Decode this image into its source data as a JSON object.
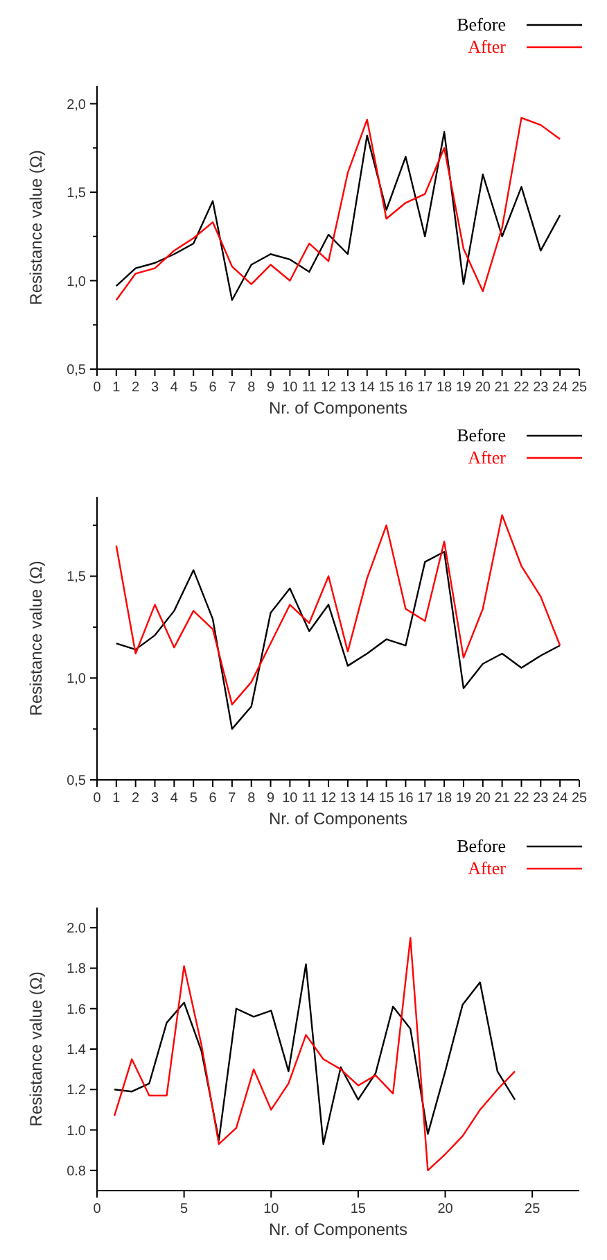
{
  "chart_data": [
    {
      "type": "line",
      "xlabel": "Nr. of Components",
      "ylabel": "Resistance value (Ω)",
      "legend": "top right",
      "x": [
        1,
        2,
        3,
        4,
        5,
        6,
        7,
        8,
        9,
        10,
        11,
        12,
        13,
        14,
        15,
        16,
        17,
        18,
        19,
        20,
        21,
        22,
        23,
        24
      ],
      "xlim": [
        0,
        25
      ],
      "xticks": [
        0,
        1,
        2,
        3,
        4,
        5,
        6,
        7,
        8,
        9,
        10,
        11,
        12,
        13,
        14,
        15,
        16,
        17,
        18,
        19,
        20,
        21,
        22,
        23,
        24,
        25
      ],
      "ylim": [
        0.5,
        2.1
      ],
      "yticks": [
        {
          "value": 0.5,
          "label": "0,5"
        },
        {
          "value": 0.75,
          "label": null
        },
        {
          "value": 1,
          "label": "1,0"
        },
        {
          "value": 1.25,
          "label": null
        },
        {
          "value": 1.5,
          "label": "1,5"
        },
        {
          "value": 1.75,
          "label": null
        },
        {
          "value": 2,
          "label": "2,0"
        }
      ],
      "series": [
        {
          "name": "Before",
          "color": "#000000",
          "values": [
            0.97,
            1.07,
            1.1,
            1.15,
            1.21,
            1.45,
            0.89,
            1.09,
            1.15,
            1.12,
            1.05,
            1.26,
            1.15,
            1.82,
            1.4,
            1.7,
            1.25,
            1.84,
            0.98,
            1.6,
            1.25,
            1.53,
            1.17,
            1.37
          ]
        },
        {
          "name": "After",
          "color": "#ff0000",
          "values": [
            0.89,
            1.04,
            1.07,
            1.17,
            1.24,
            1.33,
            1.08,
            0.98,
            1.09,
            1.0,
            1.21,
            1.11,
            1.61,
            1.91,
            1.35,
            1.44,
            1.49,
            1.75,
            1.18,
            0.94,
            1.3,
            1.92,
            1.88,
            1.8
          ]
        }
      ]
    },
    {
      "type": "line",
      "xlabel": "Nr. of Components",
      "ylabel": "Resistance value (Ω)",
      "legend": "top right",
      "x": [
        1,
        2,
        3,
        4,
        5,
        6,
        7,
        8,
        9,
        10,
        11,
        12,
        13,
        14,
        15,
        16,
        17,
        18,
        19,
        20,
        21,
        22,
        23,
        24
      ],
      "xlim": [
        0,
        25
      ],
      "xticks": [
        0,
        1,
        2,
        3,
        4,
        5,
        6,
        7,
        8,
        9,
        10,
        11,
        12,
        13,
        14,
        15,
        16,
        17,
        18,
        19,
        20,
        21,
        22,
        23,
        24,
        25
      ],
      "ylim": [
        0.5,
        1.89
      ],
      "yticks": [
        {
          "value": 0.5,
          "label": "0,5"
        },
        {
          "value": 0.75,
          "label": null
        },
        {
          "value": 1,
          "label": "1,0"
        },
        {
          "value": 1.25,
          "label": null
        },
        {
          "value": 1.5,
          "label": "1,5"
        },
        {
          "value": 1.75,
          "label": null
        }
      ],
      "series": [
        {
          "name": "Before",
          "color": "#000000",
          "values": [
            1.17,
            1.14,
            1.21,
            1.33,
            1.53,
            1.29,
            0.75,
            0.86,
            1.32,
            1.44,
            1.23,
            1.36,
            1.06,
            1.12,
            1.19,
            1.16,
            1.57,
            1.62,
            0.95,
            1.07,
            1.12,
            1.05,
            1.11,
            1.16
          ]
        },
        {
          "name": "After",
          "color": "#ff0000",
          "values": [
            1.65,
            1.12,
            1.36,
            1.15,
            1.33,
            1.24,
            0.87,
            0.98,
            1.17,
            1.36,
            1.27,
            1.5,
            1.13,
            1.49,
            1.75,
            1.34,
            1.28,
            1.67,
            1.1,
            1.34,
            1.8,
            1.55,
            1.4,
            1.16
          ]
        }
      ]
    },
    {
      "type": "line",
      "xlabel": "Nr. of Components",
      "ylabel": "Resistance value (Ω)",
      "legend": "top right",
      "x": [
        1,
        2,
        3,
        4,
        5,
        6,
        7,
        8,
        9,
        10,
        11,
        12,
        13,
        14,
        15,
        16,
        17,
        18,
        19,
        20,
        21,
        22,
        23,
        24
      ],
      "xlim": [
        0,
        27.7
      ],
      "xticks": [
        0,
        5,
        10,
        15,
        20,
        25
      ],
      "ylim": [
        0.7,
        2.1
      ],
      "yticks": [
        {
          "value": 0.8,
          "label": "0.8"
        },
        {
          "value": 1,
          "label": "1.0"
        },
        {
          "value": 1.2,
          "label": "1.2"
        },
        {
          "value": 1.4,
          "label": "1.4"
        },
        {
          "value": 1.6,
          "label": "1.6"
        },
        {
          "value": 1.8,
          "label": "1.8"
        },
        {
          "value": 2,
          "label": "2.0"
        }
      ],
      "series": [
        {
          "name": "Before",
          "color": "#000000",
          "values": [
            1.2,
            1.19,
            1.23,
            1.53,
            1.63,
            1.39,
            0.95,
            1.6,
            1.56,
            1.59,
            1.29,
            1.82,
            0.93,
            1.31,
            1.15,
            1.28,
            1.61,
            1.5,
            0.98,
            1.29,
            1.62,
            1.73,
            1.29,
            1.15
          ]
        },
        {
          "name": "After",
          "color": "#ff0000",
          "values": [
            1.07,
            1.35,
            1.17,
            1.17,
            1.81,
            1.42,
            0.93,
            1.01,
            1.3,
            1.1,
            1.23,
            1.47,
            1.35,
            1.3,
            1.22,
            1.27,
            1.18,
            1.95,
            0.8,
            0.88,
            0.97,
            1.1,
            1.2,
            1.29
          ]
        }
      ]
    }
  ]
}
